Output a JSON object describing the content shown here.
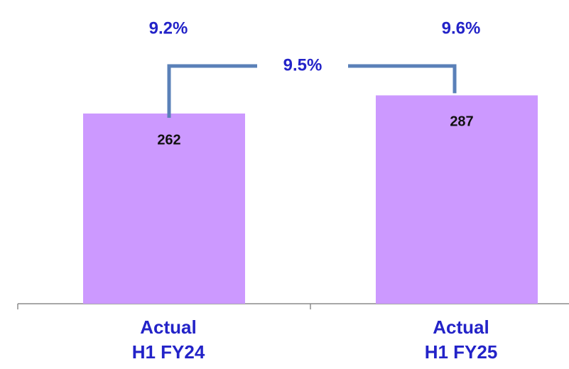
{
  "chart_data": {
    "type": "bar",
    "categories": [
      [
        "Actual",
        "H1 FY24"
      ],
      [
        "Actual",
        "H1 FY25"
      ]
    ],
    "values": [
      262,
      287
    ],
    "color": "#cc99ff",
    "margin_values": [
      9.2,
      9.6
    ],
    "margin_labels": [
      "9.2%",
      "9.6%"
    ],
    "growth": {
      "value": 9.5,
      "label": "9.5%"
    }
  }
}
